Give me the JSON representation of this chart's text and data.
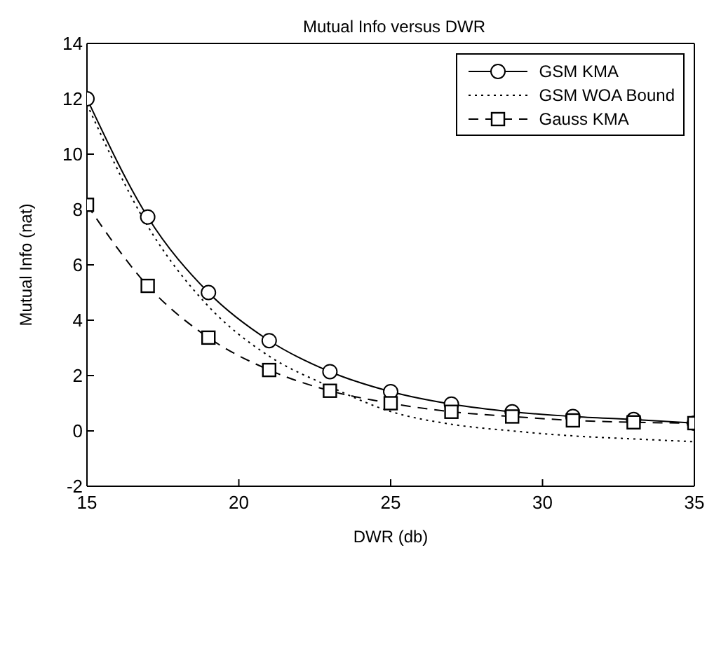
{
  "chart_data": {
    "type": "line",
    "title": "Mutual Info versus DWR",
    "xlabel": "DWR (db)",
    "ylabel": "Mutual Info (nat)",
    "x": [
      15,
      17,
      19,
      21,
      23,
      25,
      27,
      29,
      31,
      33,
      35
    ],
    "xlim": [
      15,
      35
    ],
    "xticks": [
      15,
      20,
      25,
      30,
      35
    ],
    "ylim": [
      -2,
      14
    ],
    "yticks": [
      -2,
      0,
      2,
      4,
      6,
      8,
      10,
      12,
      14
    ],
    "legend": "top right",
    "series": [
      {
        "name": "GSM KMA",
        "color": "#000000",
        "marker": "circle",
        "line_style": "solid",
        "values": [
          12.0,
          7.73,
          5.0,
          3.26,
          2.14,
          1.42,
          0.97,
          0.69,
          0.52,
          0.41,
          0.28
        ]
      },
      {
        "name": "GSM WOA Bound",
        "color": "#000000",
        "marker": "none",
        "line_style": "dotted",
        "values": [
          11.8,
          7.4,
          4.5,
          2.7,
          1.6,
          0.7,
          0.24,
          0.0,
          -0.18,
          -0.29,
          -0.39
        ]
      },
      {
        "name": "Gauss KMA",
        "color": "#000000",
        "marker": "square",
        "line_style": "dashed",
        "values": [
          8.17,
          5.24,
          3.37,
          2.2,
          1.45,
          1.0,
          0.69,
          0.52,
          0.38,
          0.31,
          0.28
        ]
      }
    ]
  }
}
